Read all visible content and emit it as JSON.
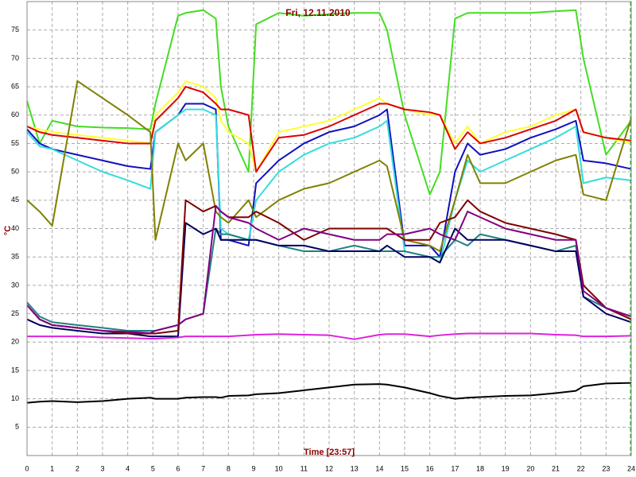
{
  "chart_data": {
    "type": "line",
    "title": "Fri, 12.11.2010",
    "x_label": "Time [23:57]",
    "y_label": "°C",
    "x": [
      0,
      0.5,
      1,
      2,
      3,
      4,
      4.9,
      5.1,
      6,
      6.3,
      7,
      7.5,
      7.7,
      8,
      8.8,
      9.1,
      10,
      11,
      12,
      13,
      14,
      14.3,
      15,
      16,
      16.4,
      17,
      17.5,
      18,
      19,
      20,
      21,
      21.8,
      22.1,
      23,
      24
    ],
    "xlim": [
      0,
      24
    ],
    "xticks": [
      0,
      1,
      2,
      3,
      4,
      5,
      6,
      7,
      8,
      9,
      10,
      11,
      12,
      13,
      14,
      15,
      16,
      17,
      18,
      19,
      20,
      21,
      22,
      23,
      24
    ],
    "ylim": [
      0,
      80
    ],
    "yticks": [
      5,
      10,
      15,
      20,
      25,
      30,
      35,
      40,
      45,
      50,
      55,
      60,
      65,
      70,
      75
    ],
    "grid": true,
    "series": [
      {
        "color": "#44dd22",
        "values": [
          62.5,
          55,
          59,
          58,
          57.8,
          57.7,
          57.5,
          62,
          77.5,
          78,
          78.5,
          77,
          65,
          58,
          50,
          76,
          78,
          77.5,
          77.8,
          78,
          78,
          75,
          60,
          46,
          50,
          77,
          78,
          78,
          78,
          78,
          78.3,
          78.5,
          70,
          53,
          59
        ]
      },
      {
        "color": "#ffff33",
        "values": [
          58,
          57.5,
          57,
          56.5,
          56,
          55.5,
          55,
          60,
          64,
          66,
          65,
          63,
          59,
          57,
          55,
          50,
          57,
          58,
          59,
          61,
          63,
          62,
          61,
          60,
          60,
          55,
          58,
          55,
          57,
          58,
          60,
          61,
          57,
          56,
          55
        ]
      },
      {
        "color": "#dd0000",
        "values": [
          58,
          57,
          56.5,
          56,
          55.5,
          55,
          55,
          59,
          63,
          65,
          64,
          62,
          61,
          61,
          60,
          50,
          56,
          56.5,
          58,
          60,
          62,
          62,
          61,
          60.5,
          60,
          54,
          57,
          55,
          56,
          57.5,
          59,
          61,
          57,
          56,
          55.5
        ]
      },
      {
        "color": "#1010c0",
        "values": [
          57.5,
          55,
          54,
          53,
          52,
          51,
          50.5,
          57,
          60,
          62,
          62,
          61,
          38,
          38,
          37,
          48,
          52,
          55,
          57,
          58,
          60,
          61,
          37,
          37,
          35,
          50,
          55,
          53,
          54,
          56,
          57.5,
          59,
          52,
          51.5,
          50.5
        ]
      },
      {
        "color": "#33dddd",
        "values": [
          57,
          54.5,
          54,
          52,
          50,
          48.5,
          47,
          57,
          60,
          61,
          61,
          60,
          40,
          39,
          38,
          45,
          50,
          53,
          55,
          56,
          58,
          59,
          36,
          35,
          34,
          45,
          52,
          50,
          52,
          54,
          56,
          58,
          48,
          49,
          48.5
        ]
      },
      {
        "color": "#808000",
        "values": [
          45,
          43,
          40.5,
          66,
          63,
          60,
          57,
          38,
          55,
          52,
          55,
          43,
          42,
          41,
          45,
          42,
          45,
          47,
          48,
          50,
          52,
          51,
          38,
          37,
          36,
          45,
          53,
          48,
          48,
          50,
          52,
          53,
          46,
          45,
          59.5
        ]
      },
      {
        "color": "#208080",
        "values": [
          27,
          24.5,
          23.5,
          23,
          22.5,
          22,
          22,
          22,
          23,
          24,
          25,
          40,
          39,
          39,
          38,
          38,
          37,
          36,
          36,
          37,
          36,
          36,
          36,
          35,
          35,
          38,
          37,
          39,
          38,
          37,
          36,
          37,
          28,
          26,
          24.5
        ]
      },
      {
        "color": "#000060",
        "values": [
          24,
          23,
          22.5,
          22,
          21.5,
          21.5,
          21,
          21,
          21,
          41,
          39,
          40,
          38,
          38,
          38,
          38,
          37,
          37,
          36,
          36,
          36,
          37,
          35,
          35,
          34,
          40,
          38,
          38,
          38,
          37,
          36,
          36,
          28,
          25,
          23.5
        ]
      },
      {
        "color": "#800000",
        "values": [
          26.5,
          24,
          23,
          22.5,
          22,
          21.5,
          21.5,
          21.5,
          22,
          45,
          43,
          44,
          43,
          42,
          42,
          43,
          41,
          38,
          40,
          40,
          40,
          40,
          38,
          38,
          41,
          42,
          45,
          43,
          41,
          40,
          39,
          38,
          30,
          26,
          24
        ]
      },
      {
        "color": "#800080",
        "values": [
          26.5,
          24,
          23,
          22.5,
          22,
          21.8,
          21.6,
          22,
          23,
          24,
          25,
          44,
          43,
          42,
          41,
          40,
          38,
          40,
          39,
          38,
          38,
          39,
          39,
          40,
          39,
          38,
          43,
          42,
          40,
          39,
          38,
          38,
          29,
          26,
          24.5
        ]
      },
      {
        "color": "#dd22dd",
        "values": [
          21,
          21,
          21,
          21,
          20.8,
          20.7,
          20.6,
          20.6,
          20.8,
          21,
          21,
          21,
          21,
          21,
          21.2,
          21.3,
          21.4,
          21.3,
          21.2,
          20.5,
          21.3,
          21.4,
          21.4,
          21,
          21.2,
          21.4,
          21.5,
          21.5,
          21.5,
          21.5,
          21.3,
          21.2,
          21,
          21,
          21.1
        ]
      },
      {
        "color": "#000000",
        "values": [
          9.3,
          9.5,
          9.6,
          9.4,
          9.6,
          10,
          10.2,
          10,
          10,
          10.2,
          10.3,
          10.3,
          10.2,
          10.5,
          10.6,
          10.8,
          11,
          11.5,
          12,
          12.5,
          12.6,
          12.5,
          12,
          11,
          10.5,
          10,
          10.2,
          10.3,
          10.5,
          10.6,
          11,
          11.4,
          12.2,
          12.7,
          12.8
        ]
      }
    ]
  }
}
